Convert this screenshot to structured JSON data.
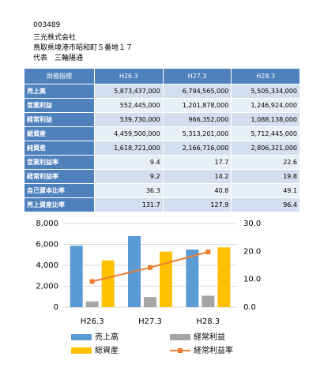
{
  "header": {
    "code": "003489",
    "company": "三光株式会社",
    "address": "鳥取県境港市昭和町５番地１７",
    "representative": "代表　三輪陽通"
  },
  "table": {
    "columns": [
      "財務指標",
      "H26.3",
      "H27.3",
      "H28.3"
    ],
    "rows": [
      [
        "売上高",
        "5,873,437,000",
        "6,794,565,000",
        "5,505,334,000"
      ],
      [
        "営業利益",
        "552,445,000",
        "1,201,878,000",
        "1,246,924,000"
      ],
      [
        "経常利益",
        "539,730,000",
        "966,352,000",
        "1,088,138,000"
      ],
      [
        "総資産",
        "4,459,500,000",
        "5,313,201,000",
        "5,712,445,000"
      ],
      [
        "純資産",
        "1,618,721,000",
        "2,166,716,000",
        "2,806,321,000"
      ],
      [
        "営業利益率",
        "9.4",
        "17.7",
        "22.6"
      ],
      [
        "経常利益率",
        "9.2",
        "14.2",
        "19.8"
      ],
      [
        "自己資本比率",
        "36.3",
        "40.8",
        "49.1"
      ],
      [
        "売上資産比率",
        "131.7",
        "127.9",
        "96.4"
      ]
    ]
  },
  "chart_data": {
    "type": "bar-line",
    "categories": [
      "H26.3",
      "H27.3",
      "H28.3"
    ],
    "series": [
      {
        "name": "売上高",
        "color": "#5b9bd5",
        "values": [
          5873,
          6795,
          5505
        ]
      },
      {
        "name": "経常利益",
        "color": "#a5a5a5",
        "values": [
          540,
          966,
          1088
        ]
      },
      {
        "name": "総資産",
        "color": "#ffc000",
        "values": [
          4460,
          5313,
          5712
        ]
      },
      {
        "name": "経常利益率",
        "color": "#ed7d31",
        "type": "line",
        "axis": "y2",
        "values": [
          9.2,
          14.2,
          19.8
        ]
      }
    ],
    "ylim": [
      0,
      8000
    ],
    "yticks": [
      0,
      {
        "value": 2000,
        "label": "2,000"
      },
      {
        "value": 4000,
        "label": "4,000"
      },
      {
        "value": 6000,
        "label": "6,000"
      },
      {
        "value": 8000,
        "label": "8,000"
      }
    ],
    "y2lim": [
      0,
      30
    ],
    "y2ticks": [
      {
        "value": 0,
        "label": "0.0"
      },
      {
        "value": 10,
        "label": "10.0"
      },
      {
        "value": 20,
        "label": "20.0"
      },
      {
        "value": 30,
        "label": "30.0"
      }
    ],
    "grid": true
  }
}
